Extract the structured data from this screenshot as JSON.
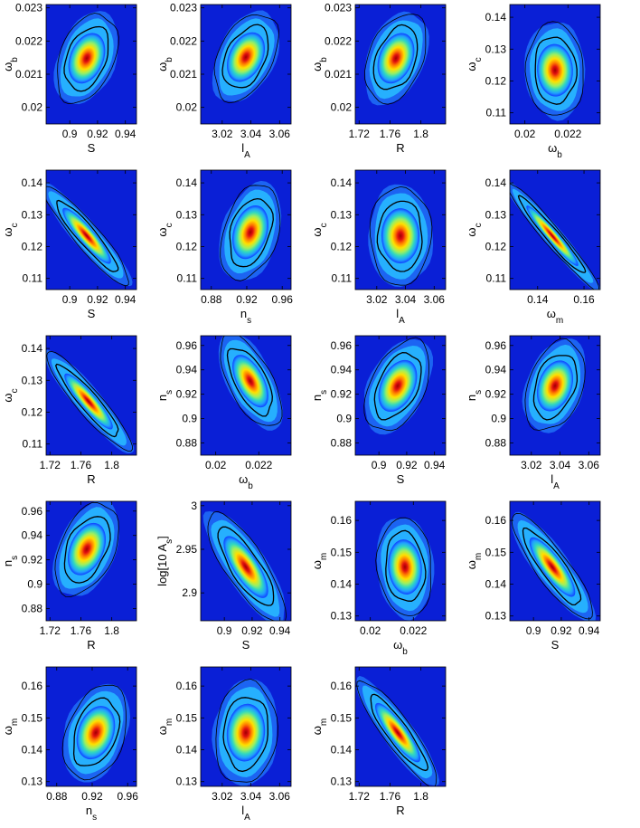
{
  "chart_data": [
    {
      "type": "heatmap",
      "xlabel": "S",
      "ylabel": "ω",
      "ylabel_sub": "b",
      "xticks": [
        "0.9",
        "0.92",
        "0.94"
      ],
      "yticks": [
        "0.023",
        "0.022",
        "0.021",
        "0.02"
      ],
      "xlim": [
        0.883,
        0.948
      ],
      "ylim": [
        0.0195,
        0.0231
      ],
      "contour_kind": "blob",
      "tilt": -0.45,
      "cx": 0.45,
      "cy": 0.45,
      "rx": 0.3,
      "ry": 0.4
    },
    {
      "type": "heatmap",
      "xlabel": "l",
      "xlabel_sub": "A",
      "ylabel": "ω",
      "ylabel_sub": "b",
      "xticks": [
        "3.02",
        "3.04",
        "3.06"
      ],
      "yticks": [
        "0.023",
        "0.022",
        "0.021",
        "0.02"
      ],
      "xlim": [
        3.005,
        3.068
      ],
      "ylim": [
        0.0195,
        0.0231
      ],
      "contour_kind": "ellipse",
      "tilt": -0.55,
      "cx": 0.5,
      "cy": 0.44,
      "rx": 0.3,
      "ry": 0.4
    },
    {
      "type": "heatmap",
      "xlabel": "R",
      "ylabel": "ω",
      "ylabel_sub": "b",
      "xticks": [
        "1.72",
        "1.76",
        "1.8"
      ],
      "yticks": [
        "0.023",
        "0.022",
        "0.021",
        "0.02"
      ],
      "xlim": [
        1.715,
        1.832
      ],
      "ylim": [
        0.0195,
        0.0231
      ],
      "contour_kind": "blob",
      "tilt": -0.45,
      "cx": 0.45,
      "cy": 0.45,
      "rx": 0.3,
      "ry": 0.4
    },
    {
      "type": "heatmap",
      "xlabel": "ω",
      "xlabel_sub": "b",
      "ylabel": "ω",
      "ylabel_sub": "c",
      "xticks": [
        "0.02",
        "0.022"
      ],
      "yticks": [
        "0.14",
        "0.13",
        "0.12",
        "0.11"
      ],
      "xlim": [
        0.0193,
        0.0235
      ],
      "ylim": [
        0.1065,
        0.144
      ],
      "contour_kind": "blob",
      "tilt": 0.05,
      "cx": 0.5,
      "cy": 0.55,
      "rx": 0.32,
      "ry": 0.4
    },
    {
      "type": "heatmap",
      "xlabel": "S",
      "ylabel": "ω",
      "ylabel_sub": "c",
      "xticks": [
        "0.9",
        "0.92",
        "0.94"
      ],
      "yticks": [
        "0.14",
        "0.13",
        "0.12",
        "0.11"
      ],
      "xlim": [
        0.883,
        0.948
      ],
      "ylim": [
        0.1065,
        0.144
      ],
      "contour_kind": "diag",
      "tilt": 1.0,
      "cx": 0.45,
      "cy": 0.55,
      "rx": 0.14,
      "ry": 0.55
    },
    {
      "type": "heatmap",
      "xlabel": "n",
      "xlabel_sub": "s",
      "ylabel": "ω",
      "ylabel_sub": "c",
      "xticks": [
        "0.88",
        "0.92",
        "0.96"
      ],
      "yticks": [
        "0.14",
        "0.13",
        "0.12",
        "0.11"
      ],
      "xlim": [
        0.868,
        0.97
      ],
      "ylim": [
        0.1065,
        0.144
      ],
      "contour_kind": "blob",
      "tilt": -0.35,
      "cx": 0.55,
      "cy": 0.52,
      "rx": 0.3,
      "ry": 0.42
    },
    {
      "type": "heatmap",
      "xlabel": "l",
      "xlabel_sub": "A",
      "ylabel": "ω",
      "ylabel_sub": "c",
      "xticks": [
        "3.02",
        "3.04",
        "3.06"
      ],
      "yticks": [
        "0.14",
        "0.13",
        "0.12",
        "0.11"
      ],
      "xlim": [
        3.005,
        3.068
      ],
      "ylim": [
        0.1065,
        0.144
      ],
      "contour_kind": "ellipse",
      "tilt": 0.0,
      "cx": 0.5,
      "cy": 0.55,
      "rx": 0.34,
      "ry": 0.42
    },
    {
      "type": "heatmap",
      "xlabel": "ω",
      "xlabel_sub": "m",
      "ylabel": "ω",
      "ylabel_sub": "c",
      "xticks": [
        "0.14",
        "0.16"
      ],
      "yticks": [
        "0.14",
        "0.13",
        "0.12",
        "0.11"
      ],
      "xlim": [
        0.128,
        0.167
      ],
      "ylim": [
        0.1065,
        0.144
      ],
      "contour_kind": "diag",
      "tilt": 1.0,
      "cx": 0.47,
      "cy": 0.55,
      "rx": 0.1,
      "ry": 0.6
    },
    {
      "type": "heatmap",
      "xlabel": "R",
      "ylabel": "ω",
      "ylabel_sub": "c",
      "xticks": [
        "1.72",
        "1.76",
        "1.8"
      ],
      "yticks": [
        "0.14",
        "0.13",
        "0.12",
        "0.11"
      ],
      "xlim": [
        1.715,
        1.832
      ],
      "ylim": [
        0.1065,
        0.144
      ],
      "contour_kind": "diag",
      "tilt": 1.0,
      "cx": 0.47,
      "cy": 0.55,
      "rx": 0.14,
      "ry": 0.55
    },
    {
      "type": "heatmap",
      "xlabel": "ω",
      "xlabel_sub": "b",
      "ylabel": "n",
      "ylabel_sub": "s",
      "xticks": [
        "0.02",
        "0.022"
      ],
      "yticks": [
        "0.96",
        "0.94",
        "0.92",
        "0.9",
        "0.88"
      ],
      "xlim": [
        0.0193,
        0.0235
      ],
      "ylim": [
        0.87,
        0.968
      ],
      "contour_kind": "ellipse",
      "tilt": 0.6,
      "cx": 0.55,
      "cy": 0.38,
      "rx": 0.24,
      "ry": 0.44
    },
    {
      "type": "heatmap",
      "xlabel": "S",
      "ylabel": "n",
      "ylabel_sub": "s",
      "xticks": [
        "0.9",
        "0.92",
        "0.94"
      ],
      "yticks": [
        "0.96",
        "0.94",
        "0.92",
        "0.9",
        "0.88"
      ],
      "xlim": [
        0.883,
        0.948
      ],
      "ylim": [
        0.87,
        0.968
      ],
      "contour_kind": "blob",
      "tilt": -0.55,
      "cx": 0.47,
      "cy": 0.42,
      "rx": 0.3,
      "ry": 0.42
    },
    {
      "type": "heatmap",
      "xlabel": "l",
      "xlabel_sub": "A",
      "ylabel": "n",
      "ylabel_sub": "s",
      "xticks": [
        "3.02",
        "3.04",
        "3.06"
      ],
      "yticks": [
        "0.96",
        "0.94",
        "0.92",
        "0.9",
        "0.88"
      ],
      "xlim": [
        3.005,
        3.068
      ],
      "ylim": [
        0.87,
        0.968
      ],
      "contour_kind": "ellipse",
      "tilt": -0.4,
      "cx": 0.5,
      "cy": 0.42,
      "rx": 0.3,
      "ry": 0.4
    },
    {
      "type": "heatmap",
      "xlabel": "R",
      "ylabel": "n",
      "ylabel_sub": "s",
      "xticks": [
        "1.72",
        "1.76",
        "1.8"
      ],
      "yticks": [
        "0.96",
        "0.94",
        "0.92",
        "0.9",
        "0.88"
      ],
      "xlim": [
        1.715,
        1.832
      ],
      "ylim": [
        0.87,
        0.968
      ],
      "contour_kind": "blob",
      "tilt": -0.5,
      "cx": 0.45,
      "cy": 0.4,
      "rx": 0.3,
      "ry": 0.42
    },
    {
      "type": "heatmap",
      "xlabel": "S",
      "ylabel": "log[10",
      "ylabel_sup": "10",
      "ylabel_tail": " A",
      "ylabel_sub": "s",
      "ylabel_end": "]",
      "xticks": [
        "0.9",
        "0.92",
        "0.94"
      ],
      "yticks": [
        "3",
        "2.95",
        "2.9"
      ],
      "xlim": [
        0.883,
        0.948
      ],
      "ylim": [
        2.868,
        3.005
      ],
      "contour_kind": "diag",
      "tilt": 0.75,
      "cx": 0.5,
      "cy": 0.55,
      "rx": 0.22,
      "ry": 0.55
    },
    {
      "type": "heatmap",
      "xlabel": "ω",
      "xlabel_sub": "b",
      "ylabel": "ω",
      "ylabel_sub": "m",
      "xticks": [
        "0.02",
        "0.022"
      ],
      "yticks": [
        "0.16",
        "0.15",
        "0.14",
        "0.13"
      ],
      "xlim": [
        0.0193,
        0.0235
      ],
      "ylim": [
        0.1285,
        0.166
      ],
      "contour_kind": "blob",
      "tilt": 0.1,
      "cx": 0.55,
      "cy": 0.55,
      "rx": 0.3,
      "ry": 0.42
    },
    {
      "type": "heatmap",
      "xlabel": "S",
      "ylabel": "ω",
      "ylabel_sub": "m",
      "xticks": [
        "0.9",
        "0.92",
        "0.94"
      ],
      "yticks": [
        "0.16",
        "0.15",
        "0.14",
        "0.13"
      ],
      "xlim": [
        0.883,
        0.948
      ],
      "ylim": [
        0.1285,
        0.166
      ],
      "contour_kind": "diag",
      "tilt": 0.85,
      "cx": 0.47,
      "cy": 0.55,
      "rx": 0.18,
      "ry": 0.55
    },
    {
      "type": "heatmap",
      "xlabel": "n",
      "xlabel_sub": "s",
      "ylabel": "ω",
      "ylabel_sub": "m",
      "xticks": [
        "0.88",
        "0.92",
        "0.96"
      ],
      "yticks": [
        "0.16",
        "0.15",
        "0.14",
        "0.13"
      ],
      "xlim": [
        0.868,
        0.97
      ],
      "ylim": [
        0.1285,
        0.166
      ],
      "contour_kind": "blob",
      "tilt": -0.4,
      "cx": 0.55,
      "cy": 0.55,
      "rx": 0.32,
      "ry": 0.42
    },
    {
      "type": "heatmap",
      "xlabel": "l",
      "xlabel_sub": "A",
      "ylabel": "ω",
      "ylabel_sub": "m",
      "xticks": [
        "3.02",
        "3.04",
        "3.06"
      ],
      "yticks": [
        "0.16",
        "0.15",
        "0.14",
        "0.13"
      ],
      "xlim": [
        3.005,
        3.068
      ],
      "ylim": [
        0.1285,
        0.166
      ],
      "contour_kind": "ellipse",
      "tilt": -0.1,
      "cx": 0.5,
      "cy": 0.55,
      "rx": 0.34,
      "ry": 0.44
    },
    {
      "type": "heatmap",
      "xlabel": "R",
      "ylabel": "ω",
      "ylabel_sub": "m",
      "xticks": [
        "1.72",
        "1.76",
        "1.8"
      ],
      "yticks": [
        "0.16",
        "0.15",
        "0.14",
        "0.13"
      ],
      "xlim": [
        1.715,
        1.832
      ],
      "ylim": [
        0.1285,
        0.166
      ],
      "contour_kind": "diag",
      "tilt": 0.85,
      "cx": 0.47,
      "cy": 0.55,
      "rx": 0.16,
      "ry": 0.55
    }
  ]
}
